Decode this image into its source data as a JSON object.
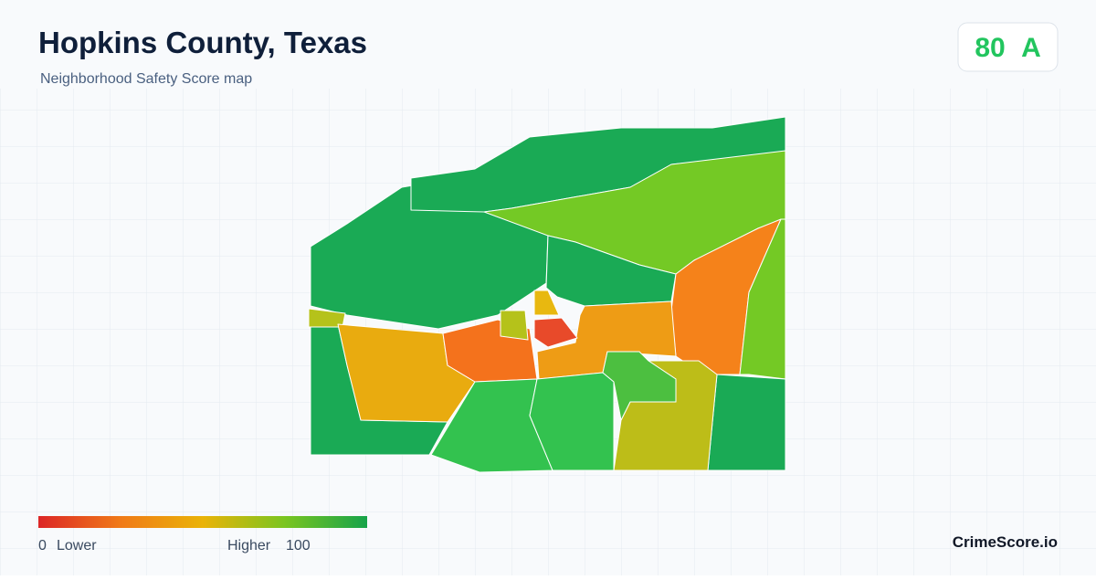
{
  "header": {
    "title": "Hopkins County, Texas",
    "subtitle": "Neighborhood Safety Score map"
  },
  "badge": {
    "score": "80",
    "grade": "A"
  },
  "legend": {
    "min": "0",
    "min_label": "Lower",
    "max_label": "Higher",
    "max": "100"
  },
  "brand": "CrimeScore.io"
}
